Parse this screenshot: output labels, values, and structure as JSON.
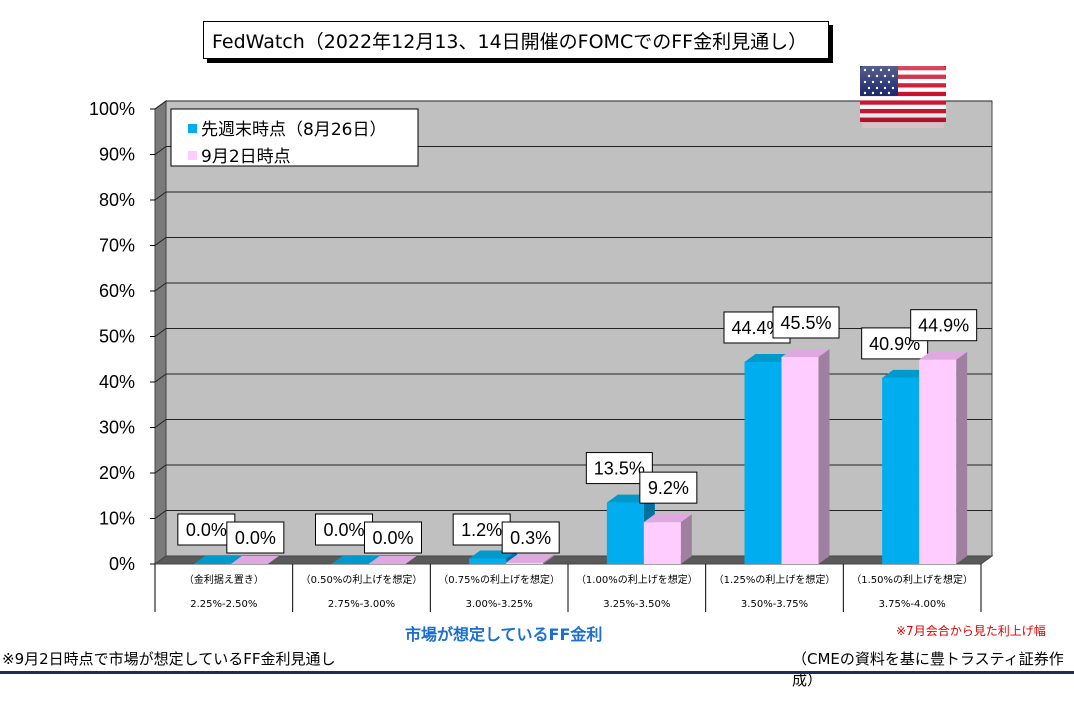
{
  "title": "FedWatch（2022年12月13、14日開催のFOMCでのFF金利見通し）",
  "chart_data": {
    "type": "bar",
    "categories": [
      "2.25%-2.50%",
      "2.75%-3.00%",
      "3.00%-3.25%",
      "3.25%-3.50%",
      "3.50%-3.75%",
      "3.75%-4.00%"
    ],
    "category_notes": [
      "（金利据え置き）",
      "（0.50%の利上げを想定）",
      "（0.75%の利上げを想定）",
      "（1.00%の利上げを想定）",
      "（1.25%の利上げを想定）",
      "（1.50%の利上げを想定）"
    ],
    "series": [
      {
        "name": "先週末時点（8月26日）",
        "values": [
          0.0,
          0.0,
          1.2,
          13.5,
          44.4,
          40.9
        ],
        "labels": [
          "0.0%",
          "0.0%",
          "1.2%",
          "13.5%",
          "44.4%",
          "40.9%"
        ],
        "color": "#00aeef"
      },
      {
        "name": "9月2日時点",
        "values": [
          0.0,
          0.0,
          0.3,
          9.2,
          45.5,
          44.9
        ],
        "labels": [
          "0.0%",
          "0.0%",
          "0.3%",
          "9.2%",
          "45.5%",
          "44.9%"
        ],
        "color": "#ffccff"
      }
    ],
    "yticks": [
      "0%",
      "10%",
      "20%",
      "30%",
      "40%",
      "50%",
      "60%",
      "70%",
      "80%",
      "90%",
      "100%"
    ],
    "ylim": [
      0,
      100
    ],
    "xlabel": "市場が想定しているFF金利",
    "ylabel": "",
    "grid": true,
    "legend": "top-left"
  },
  "notes": {
    "red": "※7月会合から見た利上げ幅",
    "left": "※9月2日時点で市場が想定しているFF金利見通し",
    "right": "（CMEの資料を基に豊トラスティ証券作成）"
  },
  "colors": {
    "plot_bg": "#c0c0c0",
    "axis_title": "#1a6fd0",
    "note_red": "#e00000",
    "rule": "#1f2d5c"
  },
  "icons": {
    "flag": "us-flag-icon"
  }
}
